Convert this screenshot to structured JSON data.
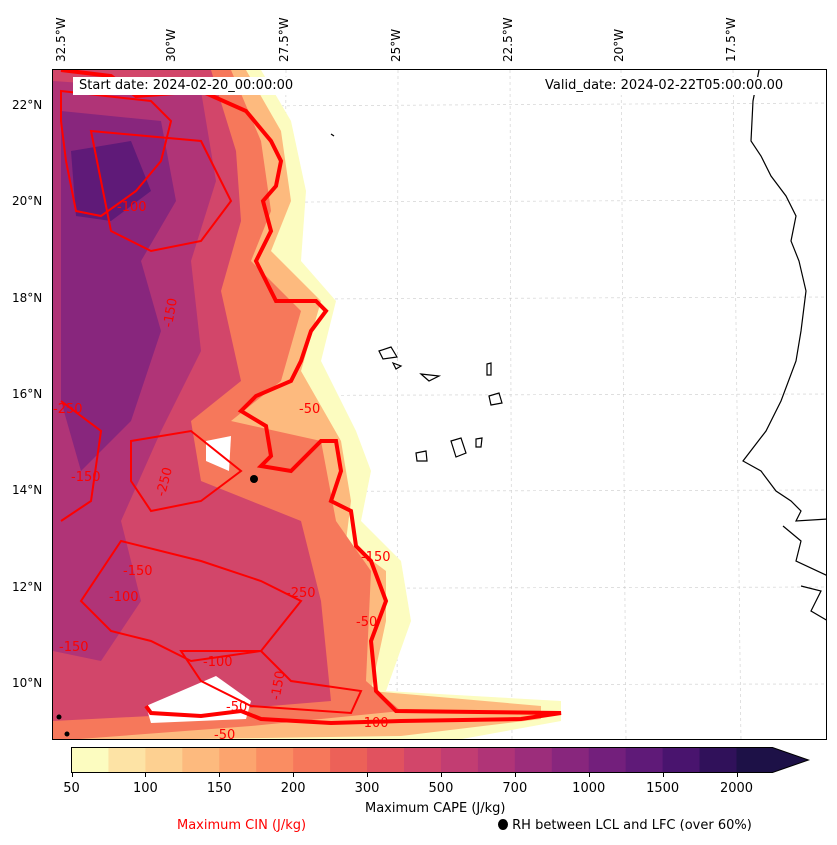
{
  "lon_labels": [
    "32.5°W",
    "30°W",
    "27.5°W",
    "25°W",
    "22.5°W",
    "20°W",
    "17.5°W"
  ],
  "lat_labels": [
    "22°N",
    "20°N",
    "18°N",
    "16°N",
    "14°N",
    "12°N",
    "10°N"
  ],
  "start_date": "Start date: 2024-02-20_00:00:00",
  "valid_date": "Valid_date: 2024-02-22T05:00:00.00",
  "contour_labels": [
    "-100",
    "-150",
    "-250",
    "-150",
    "-50",
    "-250",
    "-150",
    "-100",
    "-250",
    "-150",
    "-50",
    "-150",
    "-100",
    "-50",
    "-100",
    "-50",
    "-150"
  ],
  "colorbar": {
    "ticks": [
      "50",
      "100",
      "150",
      "200",
      "300",
      "500",
      "700",
      "1000",
      "1500",
      "2000"
    ],
    "bounds": [
      50,
      75,
      100,
      125,
      150,
      175,
      200,
      250,
      300,
      400,
      500,
      600,
      700,
      850,
      1000,
      1250,
      1500,
      1750,
      2000
    ],
    "colors": [
      "#fcfcc0",
      "#fde3a5",
      "#fdd091",
      "#fdba7e",
      "#fca46e",
      "#fa8d62",
      "#f6785b",
      "#ec6158",
      "#e1525f",
      "#d2466a",
      "#c23d72",
      "#b03477",
      "#9c2d7b",
      "#88267d",
      "#731f7c",
      "#5f1a78",
      "#49146e",
      "#30115a"
    ],
    "extend_color": "#1d1147",
    "label": "Maximum CAPE (J/kg)"
  },
  "legend": {
    "cin_label": "Maximum CIN (J/kg)",
    "rh_label": "RH between LCL and LFC (over 60%)",
    "cin_color": "#ff0000"
  }
}
